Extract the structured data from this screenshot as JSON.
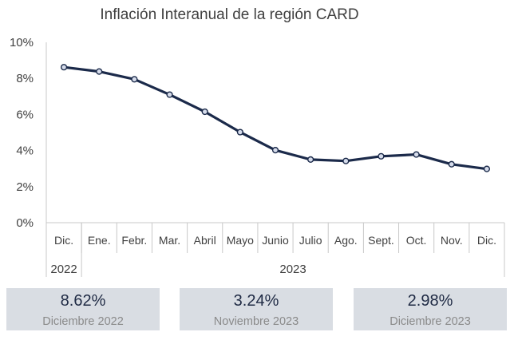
{
  "chart_data": {
    "type": "line",
    "title": "Inflación Interanual de la región CARD",
    "categories": [
      "Dic.",
      "Ene.",
      "Febr.",
      "Mar.",
      "Abril",
      "Mayo",
      "Junio",
      "Julio",
      "Ago.",
      "Sept.",
      "Oct.",
      "Nov.",
      "Dic."
    ],
    "year_groups": [
      {
        "label": "2022",
        "start": 0,
        "end": 0
      },
      {
        "label": "2023",
        "start": 1,
        "end": 12
      }
    ],
    "series": [
      {
        "values": [
          8.62,
          8.38,
          7.95,
          7.1,
          6.15,
          5.02,
          4.02,
          3.5,
          3.42,
          3.68,
          3.78,
          3.24,
          2.98
        ]
      }
    ],
    "ylim": [
      0,
      10
    ],
    "yticks": [
      0,
      2,
      4,
      6,
      8,
      10
    ],
    "yticklabels": [
      "0%",
      "2%",
      "4%",
      "6%",
      "8%",
      "10%"
    ],
    "grid": false,
    "line_color": "#1b2a4a",
    "marker_fill": "#d6dceb"
  },
  "cards": [
    {
      "value": "8.62%",
      "label": "Diciembre 2022"
    },
    {
      "value": "3.24%",
      "label": "Noviembre 2023"
    },
    {
      "value": "2.98%",
      "label": "Diciembre 2023"
    }
  ],
  "colors": {
    "card_bg": "#d9dde3",
    "card_value": "#1f2a44",
    "card_label": "#8a8a8a"
  }
}
